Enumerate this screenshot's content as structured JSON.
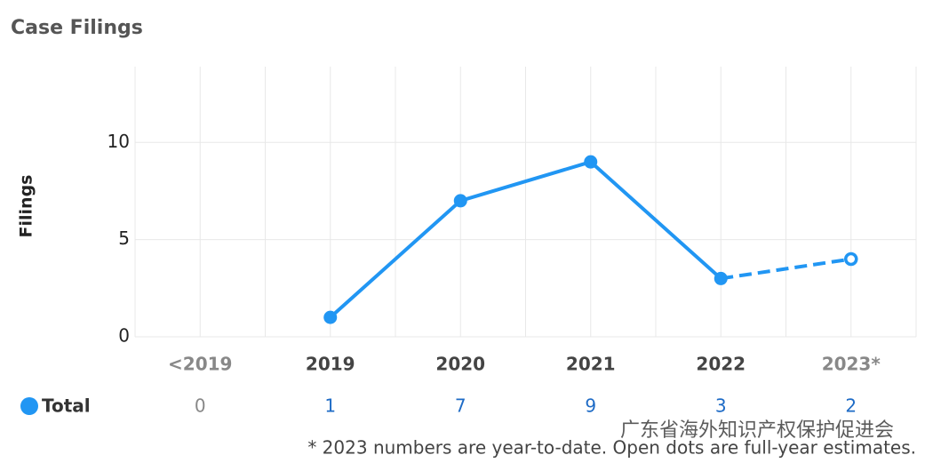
{
  "chart_data": {
    "type": "line",
    "title": "Case Filings",
    "y_label": "Filings",
    "categories": [
      "<2019",
      "2019",
      "2020",
      "2021",
      "2022",
      "2023*"
    ],
    "series": [
      {
        "name": "Total",
        "color": "#2196f3",
        "values": [
          null,
          1,
          7,
          9,
          3,
          4
        ],
        "estimated": [
          false,
          false,
          false,
          false,
          false,
          true
        ],
        "table_values": [
          0,
          1,
          7,
          9,
          3,
          2
        ]
      }
    ],
    "ylim": [
      0,
      13.9
    ],
    "yticks": [
      0,
      5,
      10
    ],
    "grid": true,
    "footnote": "* 2023 numbers are year-to-date. Open dots are full-year estimates.",
    "watermark": "广东省海外知识产权保护促进会"
  }
}
